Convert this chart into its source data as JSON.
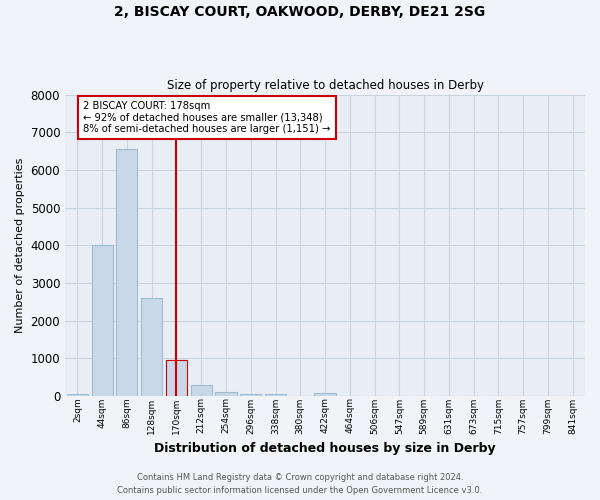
{
  "title_line1": "2, BISCAY COURT, OAKWOOD, DERBY, DE21 2SG",
  "title_line2": "Size of property relative to detached houses in Derby",
  "xlabel": "Distribution of detached houses by size in Derby",
  "ylabel": "Number of detached properties",
  "bar_labels": [
    "2sqm",
    "44sqm",
    "86sqm",
    "128sqm",
    "170sqm",
    "212sqm",
    "254sqm",
    "296sqm",
    "338sqm",
    "380sqm",
    "422sqm",
    "464sqm",
    "506sqm",
    "547sqm",
    "589sqm",
    "631sqm",
    "673sqm",
    "715sqm",
    "757sqm",
    "799sqm",
    "841sqm"
  ],
  "bar_values": [
    60,
    4000,
    6550,
    2600,
    950,
    290,
    110,
    60,
    50,
    0,
    70,
    0,
    0,
    0,
    0,
    0,
    0,
    0,
    0,
    0,
    0
  ],
  "bar_color": "#c8d8e8",
  "bar_edge_color": "#a0bcd0",
  "highlight_bar_index": 4,
  "highlight_edge_color": "#cc0000",
  "vline_color": "#cc0000",
  "annotation_text_line1": "2 BISCAY COURT: 178sqm",
  "annotation_text_line2": "← 92% of detached houses are smaller (13,348)",
  "annotation_text_line3": "8% of semi-detached houses are larger (1,151) →",
  "annotation_box_color": "#ffffff",
  "annotation_edge_color": "#cc0000",
  "grid_color": "#c8d4e0",
  "background_color": "#e8eef4",
  "fig_background": "#f0f4f8",
  "ylim": [
    0,
    8000
  ],
  "yticks": [
    0,
    1000,
    2000,
    3000,
    4000,
    5000,
    6000,
    7000,
    8000
  ],
  "footer1": "Contains HM Land Registry data © Crown copyright and database right 2024.",
  "footer2": "Contains public sector information licensed under the Open Government Licence v3.0."
}
